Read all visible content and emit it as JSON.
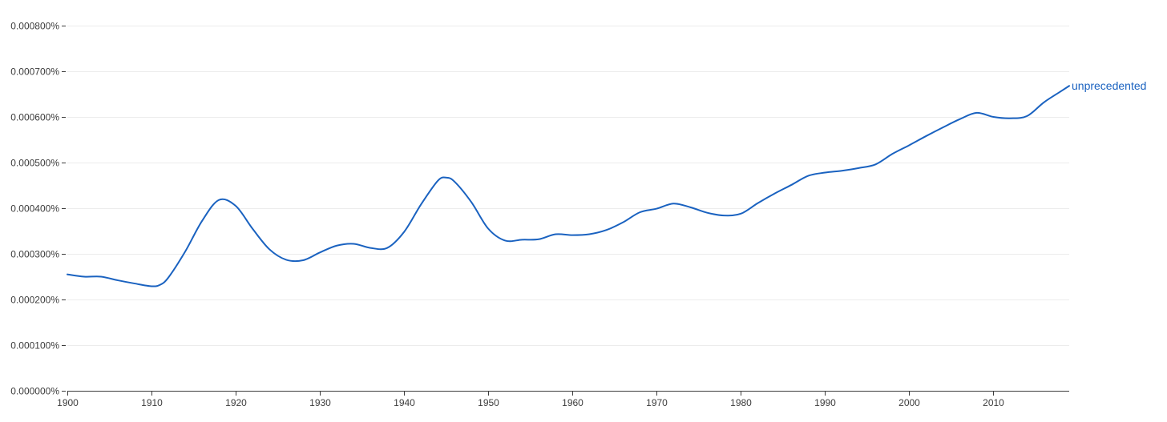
{
  "chart_data": {
    "type": "line",
    "title": "",
    "xlabel": "",
    "ylabel": "",
    "xlim": [
      1900,
      2019
    ],
    "ylim": [
      0,
      0.0008
    ],
    "grid": true,
    "legend": "label at end of line",
    "y_ticks": [
      0.0,
      0.0001,
      0.0002,
      0.0003,
      0.0004,
      0.0005,
      0.0006,
      0.0007,
      0.0008
    ],
    "y_tick_labels": [
      "0.000000%",
      "0.000100%",
      "0.000200%",
      "0.000300%",
      "0.000400%",
      "0.000500%",
      "0.000600%",
      "0.000700%",
      "0.000800%"
    ],
    "x_ticks": [
      1900,
      1910,
      1920,
      1930,
      1940,
      1950,
      1960,
      1970,
      1980,
      1990,
      2000,
      2010
    ],
    "x_tick_labels": [
      "1900",
      "1910",
      "1920",
      "1930",
      "1940",
      "1950",
      "1960",
      "1970",
      "1980",
      "1990",
      "2000",
      "2010"
    ],
    "colors": {
      "series": "#1a62c0",
      "grid": "#ececec",
      "axis": "#3c3c3c"
    },
    "series": [
      {
        "name": "unprecedented",
        "x": [
          1900,
          1902,
          1904,
          1906,
          1908,
          1910,
          1911,
          1912,
          1914,
          1916,
          1918,
          1920,
          1922,
          1924,
          1926,
          1928,
          1930,
          1932,
          1934,
          1936,
          1938,
          1940,
          1942,
          1944,
          1945,
          1946,
          1948,
          1950,
          1952,
          1954,
          1956,
          1958,
          1960,
          1962,
          1964,
          1966,
          1968,
          1970,
          1972,
          1974,
          1976,
          1978,
          1980,
          1982,
          1984,
          1986,
          1988,
          1990,
          1992,
          1994,
          1996,
          1998,
          2000,
          2002,
          2004,
          2006,
          2008,
          2010,
          2012,
          2014,
          2016,
          2018,
          2019
        ],
        "y": [
          0.000255,
          0.00025,
          0.00025,
          0.000242,
          0.000235,
          0.000229,
          0.000232,
          0.000248,
          0.000305,
          0.000372,
          0.000418,
          0.000405,
          0.000355,
          0.00031,
          0.000287,
          0.000286,
          0.000303,
          0.000318,
          0.000322,
          0.000313,
          0.000313,
          0.000348,
          0.000408,
          0.00046,
          0.000467,
          0.000458,
          0.000413,
          0.000355,
          0.000329,
          0.000331,
          0.000332,
          0.000343,
          0.000341,
          0.000343,
          0.000352,
          0.000369,
          0.000391,
          0.000399,
          0.00041,
          0.000402,
          0.00039,
          0.000384,
          0.000388,
          0.000411,
          0.000432,
          0.000451,
          0.000471,
          0.000478,
          0.000482,
          0.000488,
          0.000496,
          0.000519,
          0.000538,
          0.000558,
          0.000577,
          0.000595,
          0.000609,
          0.0006,
          0.000597,
          0.000602,
          0.000632,
          0.000656,
          0.000668
        ]
      }
    ]
  }
}
